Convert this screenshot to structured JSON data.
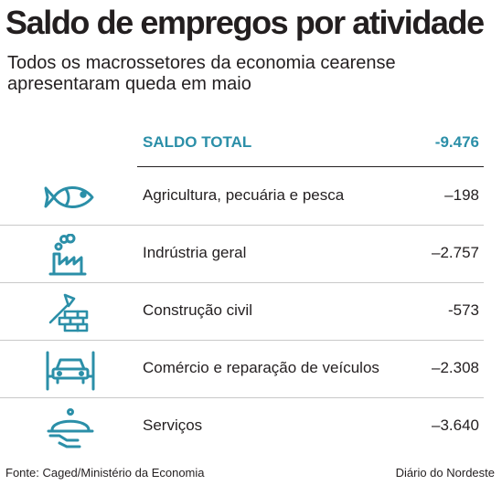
{
  "title": "Saldo de empregos por atividade",
  "subtitle": "Todos os macrossetores da economia cearense apresentaram queda em maio",
  "colors": {
    "accent": "#2b8fa8",
    "text": "#231f20",
    "divider": "#c9c9c9"
  },
  "chart_data": {
    "type": "table",
    "title": "Saldo de empregos por atividade",
    "subtitle": "Todos os macrossetores da economia cearense apresentaram queda em maio",
    "total": {
      "label": "SALDO TOTAL",
      "value": "-9.476",
      "numeric": -9476
    },
    "rows": [
      {
        "icon": "fish-icon",
        "label": "Agricultura, pecuária e pesca",
        "value": "–198",
        "numeric": -198
      },
      {
        "icon": "factory-icon",
        "label": "Indrústria geral",
        "value": "–2.757",
        "numeric": -2757
      },
      {
        "icon": "construction-icon",
        "label": "Construção civil",
        "value": "-573",
        "numeric": -573
      },
      {
        "icon": "car-lift-icon",
        "label": "Comércio e reparação de veículos",
        "value": "–2.308",
        "numeric": -2308
      },
      {
        "icon": "cloche-icon",
        "label": "Serviços",
        "value": "–3.640",
        "numeric": -3640
      }
    ]
  },
  "footer": {
    "source": "Fonte: Caged/Ministério da Economia",
    "credit": "Diário do Nordeste"
  }
}
